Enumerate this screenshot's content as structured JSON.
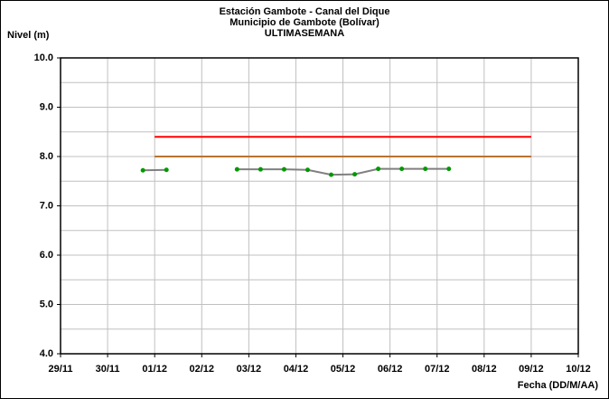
{
  "chart_data": {
    "type": "line",
    "title": [
      "Estación Gambote - Canal del Dique",
      "Municipio de Gambote (Bolívar)",
      "ULTIMASEMANA"
    ],
    "ylabel": "Nivel (m)",
    "xlabel": "Fecha (DD/M/AA)",
    "xlim": [
      0,
      11
    ],
    "xticks": [
      {
        "value": 0,
        "label": "29/11"
      },
      {
        "value": 1,
        "label": "30/11"
      },
      {
        "value": 2,
        "label": "01/12"
      },
      {
        "value": 3,
        "label": "02/12"
      },
      {
        "value": 4,
        "label": "03/12"
      },
      {
        "value": 5,
        "label": "04/12"
      },
      {
        "value": 6,
        "label": "05/12"
      },
      {
        "value": 7,
        "label": "06/12"
      },
      {
        "value": 8,
        "label": "07/12"
      },
      {
        "value": 9,
        "label": "08/12"
      },
      {
        "value": 10,
        "label": "09/12"
      },
      {
        "value": 11,
        "label": "10/12"
      }
    ],
    "ylim": [
      4,
      10
    ],
    "yticks": [
      {
        "value": 4,
        "label": "4.0"
      },
      {
        "value": 5,
        "label": "5.0"
      },
      {
        "value": 6,
        "label": "6.0"
      },
      {
        "value": 7,
        "label": "7.0"
      },
      {
        "value": 8,
        "label": "8.0"
      },
      {
        "value": 9,
        "label": "9.0"
      },
      {
        "value": 10,
        "label": "10.0"
      }
    ],
    "grid": true,
    "series": [
      {
        "color": "#ff0000",
        "x": [
          2,
          10
        ],
        "values": [
          8.4,
          8.4
        ],
        "markers": false
      },
      {
        "color": "#b8732e",
        "x": [
          2,
          10
        ],
        "values": [
          8.0,
          8.0
        ],
        "markers": false
      },
      {
        "color": "#808080",
        "marker_color": "#009900",
        "markers": true,
        "x": [
          1.75,
          2.25,
          2.75,
          3.25,
          3.75,
          4.25,
          4.75,
          5.25,
          5.75,
          6.25,
          6.75,
          7.25,
          7.75,
          8.25
        ],
        "values": [
          7.72,
          7.73,
          null,
          null,
          7.74,
          7.74,
          7.74,
          7.73,
          7.63,
          7.64,
          7.75,
          7.75,
          7.75,
          7.75
        ]
      }
    ]
  }
}
